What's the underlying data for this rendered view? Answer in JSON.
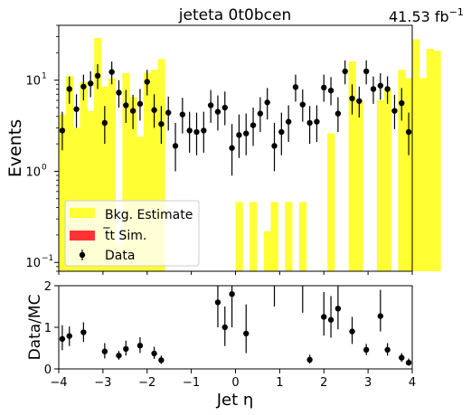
{
  "chart_data": [
    {
      "type": "bar",
      "panel": "main",
      "title": "jeteta  0t0bcen",
      "lumi_label": "41.53 fb",
      "lumi_exponent": "−1",
      "ylabel": "Events",
      "yscale": "log",
      "ylim": [
        0.08,
        40
      ],
      "y_ticks": [
        0.1,
        1,
        10
      ],
      "y_tick_labels": [
        "10",
        "10",
        "10"
      ],
      "y_tick_exponents": [
        "−1",
        "0",
        "1"
      ],
      "xlim": [
        -4,
        4
      ],
      "bin_edges_start": -4,
      "bin_width": 0.16,
      "series": [
        {
          "name": "Bkg. Estimate",
          "color": "#ffff33",
          "values": [
            4.2,
            11.0,
            3.0,
            9.5,
            4.6,
            29.0,
            8.5,
            10.5,
            0.16,
            12.0,
            6.5,
            2.4,
            12.0,
            13.0,
            17.0,
            0.0,
            0.0,
            0.0,
            0.0,
            0.0,
            0.0,
            0.0,
            0.0,
            0.0,
            0.0,
            0.46,
            0.0,
            0.46,
            0.0,
            0.22,
            0.46,
            0.0,
            0.46,
            0.0,
            0.46,
            0.0,
            0.0,
            0.0,
            2.6,
            0.0,
            0.0,
            16.0,
            6.0,
            0.0,
            0.0,
            6.0,
            8.0,
            0.0,
            13.0,
            10.5,
            28.0,
            10.5,
            22.0,
            21.0
          ]
        },
        {
          "name": "t̅t Sim.",
          "color": "#ff3333",
          "values": []
        },
        {
          "name": "Data",
          "color": "#000000",
          "points": [
            {
              "x": -3.92,
              "y": 2.8,
              "err": [
                1.7,
                4.5
              ]
            },
            {
              "x": -3.76,
              "y": 8.0,
              "err": [
                5.5,
                11.0
              ]
            },
            {
              "x": -3.6,
              "y": 4.8,
              "err": [
                3.0,
                7.0
              ]
            },
            {
              "x": -3.44,
              "y": 8.5,
              "err": [
                6.0,
                11.5
              ]
            },
            {
              "x": -3.28,
              "y": 9.2,
              "err": [
                6.5,
                12.5
              ]
            },
            {
              "x": -3.12,
              "y": 11.2,
              "err": [
                8.0,
                15.0
              ]
            },
            {
              "x": -2.96,
              "y": 3.4,
              "err": [
                2.0,
                5.2
              ]
            },
            {
              "x": -2.8,
              "y": 12.3,
              "err": [
                9.0,
                16.0
              ]
            },
            {
              "x": -2.64,
              "y": 7.3,
              "err": [
                5.0,
                10.0
              ]
            },
            {
              "x": -2.48,
              "y": 5.3,
              "err": [
                3.4,
                7.8
              ]
            },
            {
              "x": -2.32,
              "y": 4.6,
              "err": [
                2.9,
                6.9
              ]
            },
            {
              "x": -2.16,
              "y": 5.5,
              "err": [
                3.6,
                8.0
              ]
            },
            {
              "x": -2.0,
              "y": 9.6,
              "err": [
                6.8,
                13.0
              ]
            },
            {
              "x": -1.84,
              "y": 4.7,
              "err": [
                3.0,
                7.0
              ]
            },
            {
              "x": -1.68,
              "y": 3.3,
              "err": [
                2.0,
                5.2
              ]
            },
            {
              "x": -1.52,
              "y": 4.4,
              "err": [
                2.8,
                6.6
              ]
            },
            {
              "x": -1.36,
              "y": 1.9,
              "err": [
                1.0,
                3.4
              ]
            },
            {
              "x": -1.2,
              "y": 4.2,
              "err": [
                2.6,
                6.4
              ]
            },
            {
              "x": -1.04,
              "y": 2.8,
              "err": [
                1.6,
                4.5
              ]
            },
            {
              "x": -0.88,
              "y": 2.7,
              "err": [
                1.5,
                4.4
              ]
            },
            {
              "x": -0.72,
              "y": 2.8,
              "err": [
                1.6,
                4.5
              ]
            },
            {
              "x": -0.56,
              "y": 5.3,
              "err": [
                3.4,
                7.8
              ]
            },
            {
              "x": -0.4,
              "y": 4.5,
              "err": [
                2.8,
                6.8
              ]
            },
            {
              "x": -0.24,
              "y": 5.0,
              "err": [
                3.2,
                7.5
              ]
            },
            {
              "x": -0.08,
              "y": 1.8,
              "err": [
                0.9,
                3.3
              ]
            },
            {
              "x": 0.08,
              "y": 2.5,
              "err": [
                1.4,
                4.2
              ]
            },
            {
              "x": 0.24,
              "y": 2.6,
              "err": [
                1.5,
                4.3
              ]
            },
            {
              "x": 0.4,
              "y": 3.2,
              "err": [
                1.9,
                5.0
              ]
            },
            {
              "x": 0.56,
              "y": 4.3,
              "err": [
                2.7,
                6.5
              ]
            },
            {
              "x": 0.72,
              "y": 5.7,
              "err": [
                3.7,
                8.2
              ]
            },
            {
              "x": 0.88,
              "y": 1.9,
              "err": [
                1.0,
                3.4
              ]
            },
            {
              "x": 1.04,
              "y": 2.7,
              "err": [
                1.5,
                4.4
              ]
            },
            {
              "x": 1.2,
              "y": 3.5,
              "err": [
                2.1,
                5.3
              ]
            },
            {
              "x": 1.36,
              "y": 8.4,
              "err": [
                5.8,
                11.5
              ]
            },
            {
              "x": 1.52,
              "y": 5.4,
              "err": [
                3.5,
                7.9
              ]
            },
            {
              "x": 1.68,
              "y": 3.4,
              "err": [
                2.0,
                5.2
              ]
            },
            {
              "x": 1.84,
              "y": 3.5,
              "err": [
                2.1,
                5.3
              ]
            },
            {
              "x": 2.0,
              "y": 8.3,
              "err": [
                5.8,
                11.5
              ]
            },
            {
              "x": 2.16,
              "y": 7.7,
              "err": [
                5.3,
                10.8
              ]
            },
            {
              "x": 2.32,
              "y": 4.3,
              "err": [
                2.7,
                6.5
              ]
            },
            {
              "x": 2.48,
              "y": 12.5,
              "err": [
                9.0,
                16.5
              ]
            },
            {
              "x": 2.64,
              "y": 6.3,
              "err": [
                4.2,
                9.0
              ]
            },
            {
              "x": 2.8,
              "y": 5.9,
              "err": [
                3.9,
                8.5
              ]
            },
            {
              "x": 2.96,
              "y": 12.5,
              "err": [
                9.0,
                16.5
              ]
            },
            {
              "x": 3.12,
              "y": 8.0,
              "err": [
                5.5,
                11.0
              ]
            },
            {
              "x": 3.28,
              "y": 8.7,
              "err": [
                6.1,
                11.9
              ]
            },
            {
              "x": 3.44,
              "y": 8.0,
              "err": [
                5.5,
                11.0
              ]
            },
            {
              "x": 3.6,
              "y": 4.6,
              "err": [
                2.9,
                6.9
              ]
            },
            {
              "x": 3.76,
              "y": 5.6,
              "err": [
                3.6,
                8.2
              ]
            },
            {
              "x": 3.92,
              "y": 2.7,
              "err": [
                1.5,
                4.4
              ]
            }
          ]
        }
      ],
      "legend_position": "lower-left"
    },
    {
      "type": "scatter",
      "panel": "ratio",
      "xlabel": "Jet η",
      "ylabel": "Data/MC",
      "xlim": [
        -4,
        4
      ],
      "ylim": [
        0,
        2
      ],
      "x_ticks": [
        -4,
        -3,
        -2,
        -1,
        0,
        1,
        2,
        3,
        4
      ],
      "x_tick_labels": [
        "−4",
        "−3",
        "−2",
        "−1",
        "0",
        "1",
        "2",
        "3",
        "4"
      ],
      "y_ticks": [
        0,
        1,
        2
      ],
      "y_tick_labels": [
        "0",
        "1",
        "2"
      ],
      "points": [
        {
          "x": -3.92,
          "y": 0.72,
          "err": [
            0.45,
            1.05
          ]
        },
        {
          "x": -3.76,
          "y": 0.79,
          "err": [
            0.55,
            1.02
          ]
        },
        {
          "x": -3.44,
          "y": 0.88,
          "err": [
            0.65,
            1.12
          ]
        },
        {
          "x": -2.96,
          "y": 0.42,
          "err": [
            0.25,
            0.62
          ]
        },
        {
          "x": -2.64,
          "y": 0.32,
          "err": [
            0.22,
            0.43
          ]
        },
        {
          "x": -2.48,
          "y": 0.48,
          "err": [
            0.32,
            0.68
          ]
        },
        {
          "x": -2.16,
          "y": 0.56,
          "err": [
            0.38,
            0.76
          ]
        },
        {
          "x": -1.84,
          "y": 0.37,
          "err": [
            0.24,
            0.53
          ]
        },
        {
          "x": -1.68,
          "y": 0.21,
          "err": [
            0.12,
            0.32
          ]
        },
        {
          "x": -0.4,
          "y": 1.6,
          "err": [
            1.0,
            2.0
          ]
        },
        {
          "x": -0.24,
          "y": 1.0,
          "err": [
            0.55,
            1.5
          ]
        },
        {
          "x": -0.08,
          "y": 1.8,
          "err": [
            1.0,
            2.0
          ]
        },
        {
          "x": 0.24,
          "y": 0.85,
          "err": [
            0.38,
            1.55
          ]
        },
        {
          "x": 0.88,
          "y": 2.0,
          "err": [
            1.5,
            2.0
          ]
        },
        {
          "x": 1.52,
          "y": 2.0,
          "err": [
            1.35,
            2.0
          ]
        },
        {
          "x": 1.68,
          "y": 0.22,
          "err": [
            0.13,
            0.34
          ]
        },
        {
          "x": 2.0,
          "y": 1.25,
          "err": [
            0.8,
            1.85
          ]
        },
        {
          "x": 2.16,
          "y": 1.18,
          "err": [
            0.75,
            1.75
          ]
        },
        {
          "x": 2.32,
          "y": 1.45,
          "err": [
            0.95,
            2.0
          ]
        },
        {
          "x": 2.64,
          "y": 0.9,
          "err": [
            0.6,
            1.25
          ]
        },
        {
          "x": 2.96,
          "y": 0.46,
          "err": [
            0.33,
            0.6
          ]
        },
        {
          "x": 3.28,
          "y": 1.27,
          "err": [
            0.9,
            1.9
          ]
        },
        {
          "x": 3.44,
          "y": 0.46,
          "err": [
            0.32,
            0.62
          ]
        },
        {
          "x": 3.76,
          "y": 0.27,
          "err": [
            0.17,
            0.38
          ]
        },
        {
          "x": 3.92,
          "y": 0.15,
          "err": [
            0.08,
            0.25
          ]
        }
      ]
    }
  ]
}
